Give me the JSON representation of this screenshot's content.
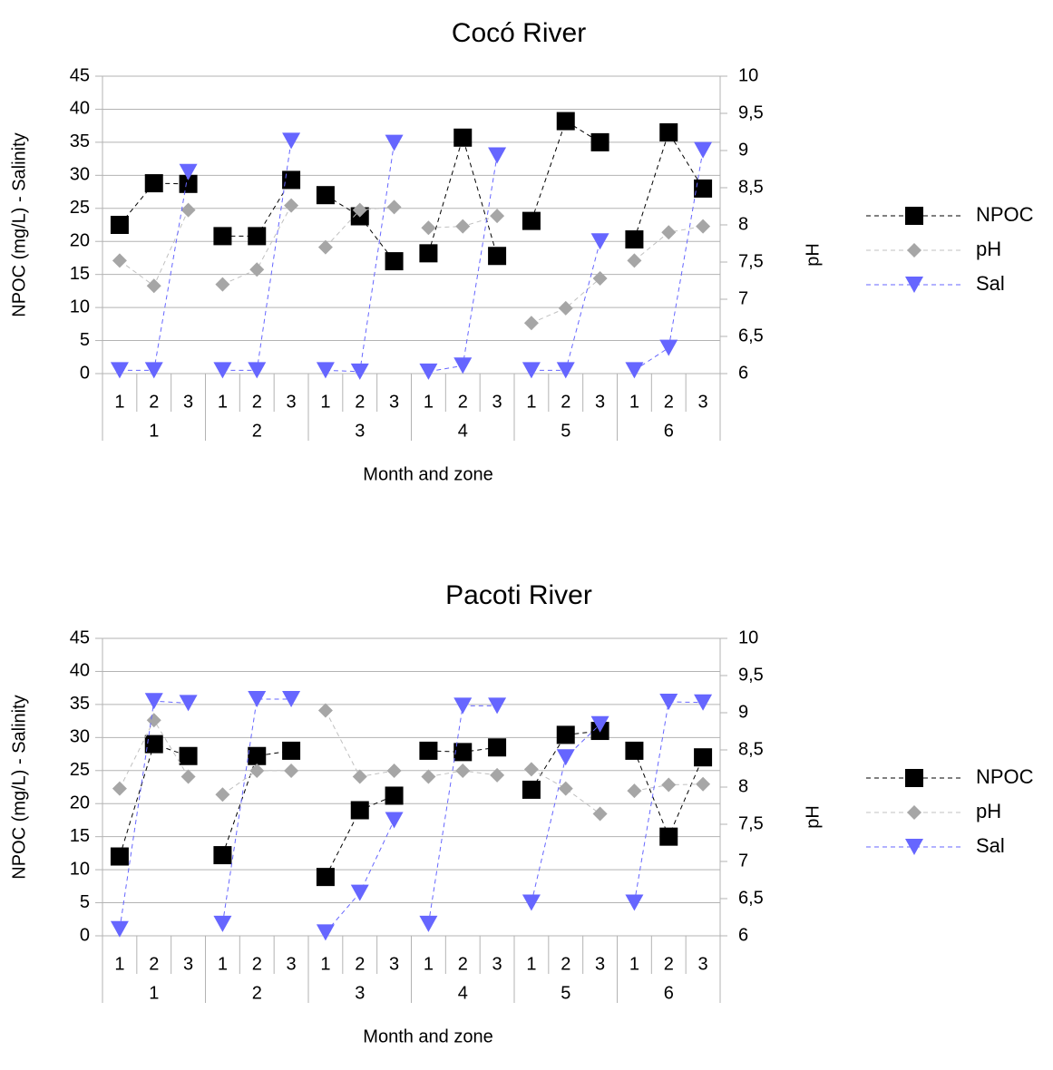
{
  "chart_data": [
    {
      "type": "line",
      "title": "Cocó River",
      "xlabel": "Month and zone",
      "ylabel": "NPOC (mg/L) - Salinity",
      "y2label": "pH",
      "ylim": [
        0,
        45
      ],
      "y2lim": [
        6,
        10
      ],
      "yticks": [
        "0",
        "5",
        "10",
        "15",
        "20",
        "25",
        "30",
        "35",
        "40",
        "45"
      ],
      "y2ticks": [
        "6",
        "6,5",
        "7",
        "7,5",
        "8",
        "8,5",
        "9",
        "9,5",
        "10"
      ],
      "months": [
        "1",
        "2",
        "3",
        "4",
        "5",
        "6"
      ],
      "zones": [
        "1",
        "2",
        "3"
      ],
      "legend_position": "right",
      "grid": true,
      "series": [
        {
          "name": "NPOC",
          "axis": "left",
          "marker": "square",
          "color": "#000000",
          "line_color": "#000000",
          "values": [
            22.5,
            28.8,
            28.7,
            20.8,
            20.8,
            29.3,
            27.0,
            23.8,
            17.0,
            18.2,
            35.7,
            17.8,
            23.1,
            38.2,
            35.0,
            20.3,
            36.5,
            28.0
          ]
        },
        {
          "name": "pH",
          "axis": "right",
          "marker": "diamond",
          "color": "#a6a6a6",
          "line_color": "#c0c0c0",
          "values": [
            7.52,
            7.18,
            8.2,
            7.2,
            7.4,
            8.26,
            7.7,
            8.2,
            8.24,
            7.96,
            7.98,
            8.12,
            6.68,
            6.88,
            7.28,
            7.52,
            7.9,
            7.98
          ]
        },
        {
          "name": "Sal",
          "axis": "left",
          "marker": "triangle-down",
          "color": "#6666ff",
          "line_color": "#6666ff",
          "values": [
            0.5,
            0.5,
            30.5,
            0.5,
            0.5,
            35.2,
            0.5,
            0.3,
            34.9,
            0.3,
            1.2,
            33.0,
            0.5,
            0.5,
            20.0,
            0.5,
            3.9,
            33.8
          ]
        }
      ]
    },
    {
      "type": "line",
      "title": "Pacoti River",
      "xlabel": "Month and zone",
      "ylabel": "NPOC (mg/L) - Salinity",
      "y2label": "pH",
      "ylim": [
        0,
        45
      ],
      "y2lim": [
        6,
        10
      ],
      "yticks": [
        "0",
        "5",
        "10",
        "15",
        "20",
        "25",
        "30",
        "35",
        "40",
        "45"
      ],
      "y2ticks": [
        "6",
        "6,5",
        "7",
        "7,5",
        "8",
        "8,5",
        "9",
        "9,5",
        "10"
      ],
      "months": [
        "1",
        "2",
        "3",
        "4",
        "5",
        "6"
      ],
      "zones": [
        "1",
        "2",
        "3"
      ],
      "legend_position": "right",
      "grid": true,
      "series": [
        {
          "name": "NPOC",
          "axis": "left",
          "marker": "square",
          "color": "#000000",
          "line_color": "#000000",
          "values": [
            12.0,
            29.0,
            27.2,
            12.2,
            27.2,
            28.0,
            8.9,
            19.0,
            21.2,
            28.0,
            27.8,
            28.5,
            22.1,
            30.4,
            31.0,
            28.0,
            15.0,
            27.0
          ]
        },
        {
          "name": "pH",
          "axis": "right",
          "marker": "diamond",
          "color": "#a6a6a6",
          "line_color": "#c0c0c0",
          "values": [
            7.98,
            8.9,
            8.14,
            7.9,
            8.22,
            8.22,
            9.03,
            8.14,
            8.22,
            8.14,
            8.22,
            8.16,
            8.24,
            7.98,
            7.64,
            7.95,
            8.03,
            8.04
          ]
        },
        {
          "name": "Sal",
          "axis": "left",
          "marker": "triangle-down",
          "color": "#6666ff",
          "line_color": "#6666ff",
          "values": [
            1.0,
            35.5,
            35.2,
            1.8,
            35.8,
            35.8,
            0.5,
            6.5,
            17.5,
            1.8,
            34.8,
            34.8,
            5.0,
            27.0,
            32.0,
            5.0,
            35.4,
            35.3
          ]
        }
      ]
    }
  ]
}
